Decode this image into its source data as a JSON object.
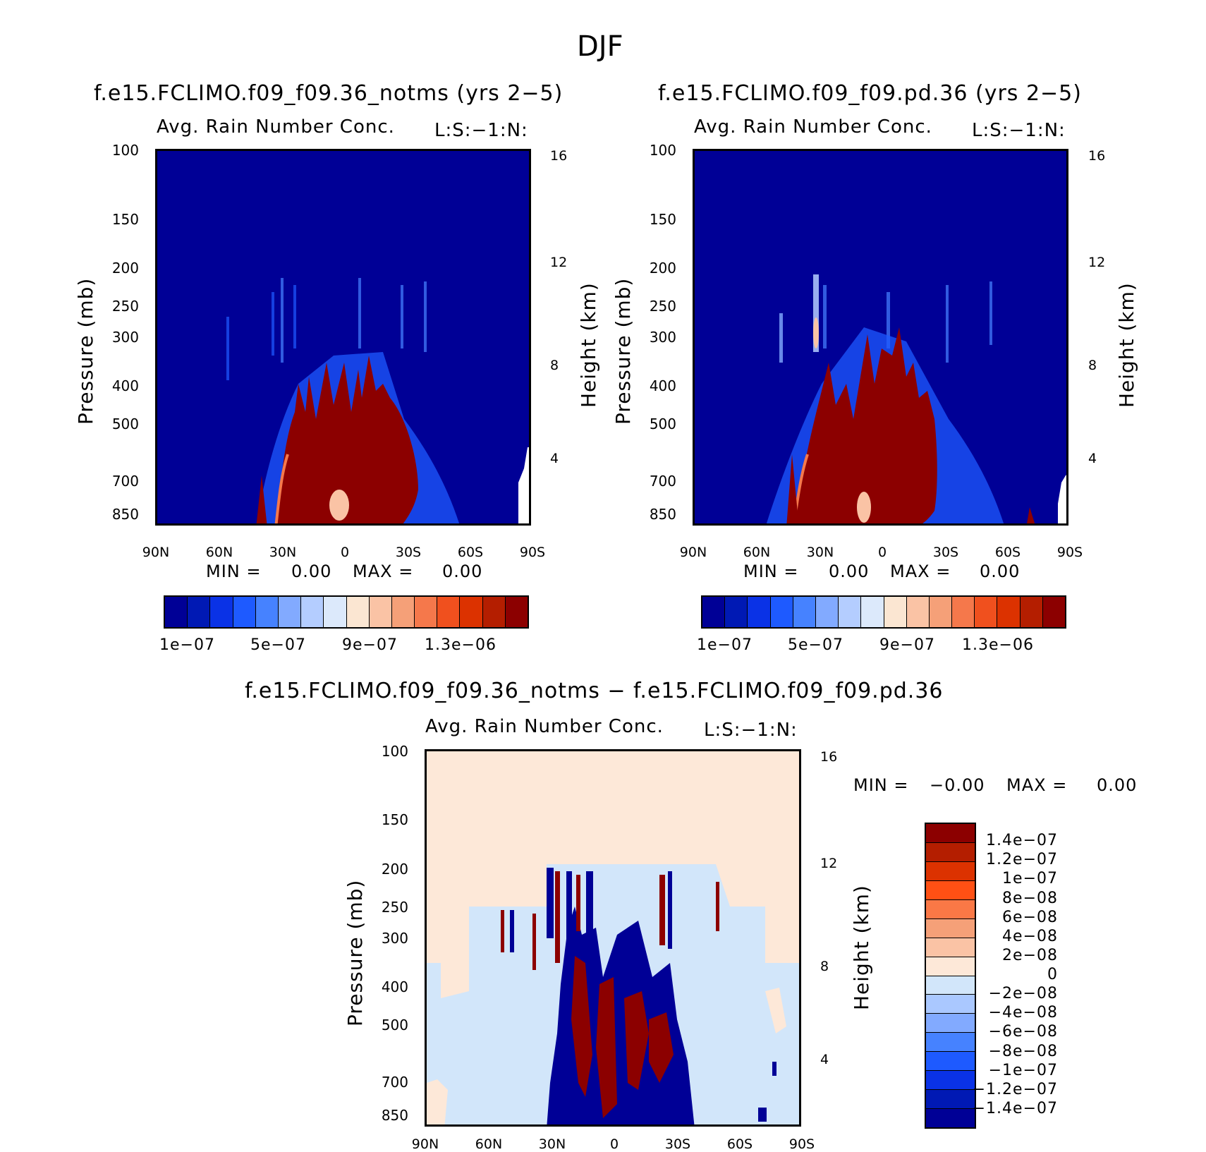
{
  "main_title": "DJF",
  "chart_data": [
    {
      "type": "heatmap",
      "title": "f.e15.FCLIMO.f09_f09.36_notms (yrs 2−5)",
      "subtitle": "Avg. Rain Number Conc.",
      "annotation": "L:S:−1:N:",
      "xlabel": "",
      "ylabel": "Pressure (mb)",
      "y2label": "Height (km)",
      "x_ticks": [
        "90N",
        "60N",
        "30N",
        "0",
        "30S",
        "60S",
        "90S"
      ],
      "y_ticks": [
        "100",
        "150",
        "200",
        "250",
        "300",
        "400",
        "500",
        "700",
        "850"
      ],
      "y2_ticks": [
        "16",
        "12",
        "8",
        "4"
      ],
      "ylim": [
        1000,
        100
      ],
      "y_scale": "log",
      "min_label": "MIN =",
      "min_value": "0.00",
      "max_label": "MAX =",
      "max_value": "0.00",
      "colorbar_labels": [
        "1e−07",
        "5e−07",
        "9e−07",
        "1.3e−06"
      ],
      "colorbar_colors": [
        "#000096",
        "#0019b4",
        "#0a32e6",
        "#1e5aff",
        "#4682ff",
        "#82aaff",
        "#b4cdff",
        "#dce9fb",
        "#fbe6d2",
        "#fac3a5",
        "#f5a078",
        "#f5784b",
        "#f0501e",
        "#dc3200",
        "#b41e00",
        "#8c0000"
      ]
    },
    {
      "type": "heatmap",
      "title": "f.e15.FCLIMO.f09_f09.pd.36 (yrs 2−5)",
      "subtitle": "Avg. Rain Number Conc.",
      "annotation": "L:S:−1:N:",
      "xlabel": "",
      "ylabel": "Pressure (mb)",
      "y2label": "Height (km)",
      "x_ticks": [
        "90N",
        "60N",
        "30N",
        "0",
        "30S",
        "60S",
        "90S"
      ],
      "y_ticks": [
        "100",
        "150",
        "200",
        "250",
        "300",
        "400",
        "500",
        "700",
        "850"
      ],
      "y2_ticks": [
        "16",
        "12",
        "8",
        "4"
      ],
      "ylim": [
        1000,
        100
      ],
      "y_scale": "log",
      "min_label": "MIN =",
      "min_value": "0.00",
      "max_label": "MAX =",
      "max_value": "0.00",
      "colorbar_labels": [
        "1e−07",
        "5e−07",
        "9e−07",
        "1.3e−06"
      ],
      "colorbar_colors": [
        "#000096",
        "#0019b4",
        "#0a32e6",
        "#1e5aff",
        "#4682ff",
        "#82aaff",
        "#b4cdff",
        "#dce9fb",
        "#fbe6d2",
        "#fac3a5",
        "#f5a078",
        "#f5784b",
        "#f0501e",
        "#dc3200",
        "#b41e00",
        "#8c0000"
      ]
    },
    {
      "type": "heatmap",
      "title": "f.e15.FCLIMO.f09_f09.36_notms − f.e15.FCLIMO.f09_f09.pd.36",
      "subtitle": "Avg. Rain Number Conc.",
      "annotation": "L:S:−1:N:",
      "xlabel": "",
      "ylabel": "Pressure (mb)",
      "y2label": "Height (km)",
      "x_ticks": [
        "90N",
        "60N",
        "30N",
        "0",
        "30S",
        "60S",
        "90S"
      ],
      "y_ticks": [
        "100",
        "150",
        "200",
        "250",
        "300",
        "400",
        "500",
        "700",
        "850"
      ],
      "y2_ticks": [
        "16",
        "12",
        "8",
        "4"
      ],
      "ylim": [
        1000,
        100
      ],
      "y_scale": "log",
      "min_label": "MIN =",
      "min_value": "−0.00",
      "max_label": "MAX =",
      "max_value": "0.00",
      "colorbar_labels": [
        "1.4e−07",
        "1.2e−07",
        "1e−07",
        "8e−08",
        "6e−08",
        "4e−08",
        "2e−08",
        "0",
        "−2e−08",
        "−4e−08",
        "−6e−08",
        "−8e−08",
        "−1e−07",
        "−1.2e−07",
        "−1.4e−07"
      ],
      "colorbar_colors": [
        "#8c0000",
        "#b41e00",
        "#dc3200",
        "#ff5014",
        "#fa7846",
        "#f5a078",
        "#fac3a5",
        "#fde8d8",
        "#d2e6fa",
        "#aac8ff",
        "#82aaff",
        "#4682ff",
        "#1e5aff",
        "#0a32e6",
        "#0019b4",
        "#000096"
      ]
    }
  ]
}
